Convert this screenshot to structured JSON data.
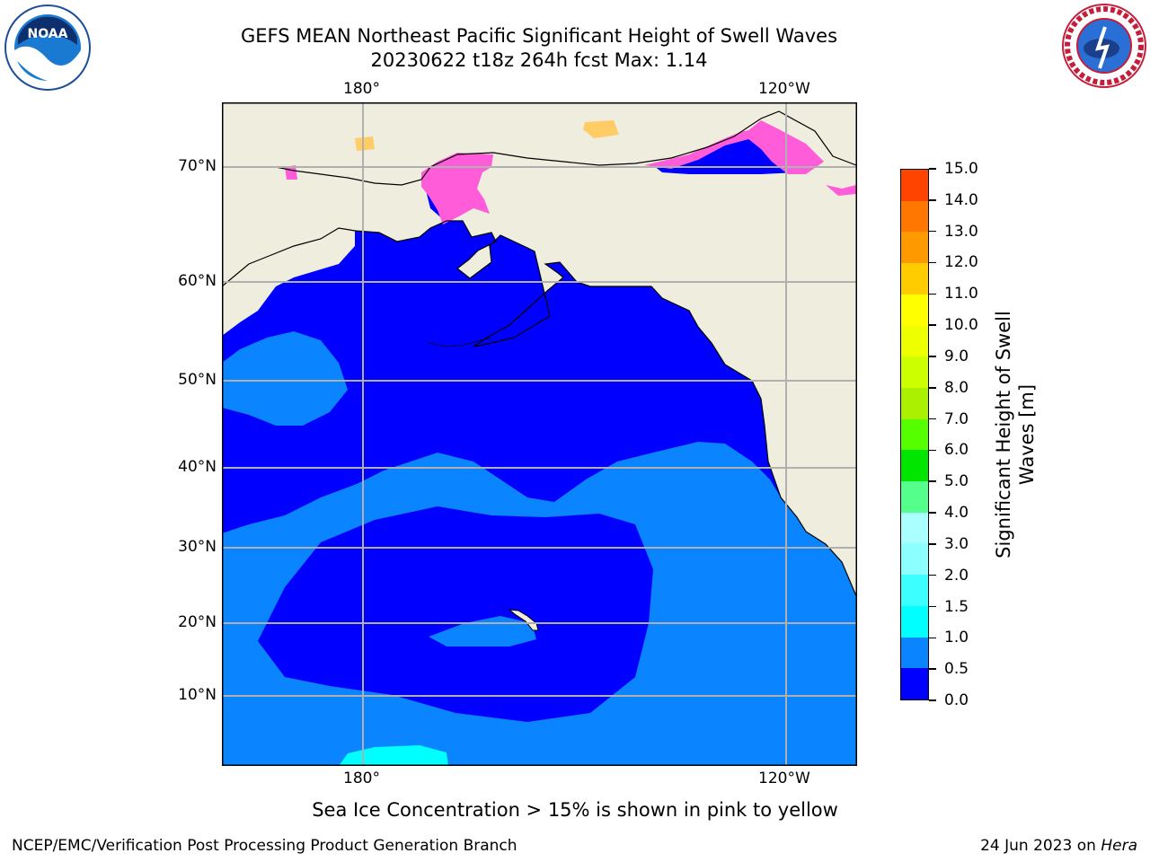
{
  "header": {
    "title_line1": "GEFS MEAN Northeast Pacific Significant Height of Swell Waves",
    "title_line2": "20230622 t18z 264h fcst   Max: 1.14"
  },
  "logos": {
    "left": "noora-logo",
    "right": "nws-logo"
  },
  "map": {
    "lon_labels": [
      "180°",
      "120°W"
    ],
    "lat_labels": [
      "70°N",
      "60°N",
      "50°N",
      "40°N",
      "30°N",
      "20°N",
      "10°N"
    ],
    "colors": {
      "land": "#efedde",
      "ocean_low": "#0000ff",
      "ocean_mid": "#0a84ff",
      "ice": "#ff5cd9",
      "grid": "#b0b0b0"
    }
  },
  "colorbar": {
    "label": "Significant Height of Swell Waves [m]",
    "ticks": [
      "0.0",
      "0.5",
      "1.0",
      "1.5",
      "2.0",
      "3.0",
      "4.0",
      "5.0",
      "6.0",
      "7.0",
      "8.0",
      "9.0",
      "10.0",
      "11.0",
      "12.0",
      "13.0",
      "14.0",
      "15.0"
    ],
    "colors": [
      "#0000ff",
      "#0a84ff",
      "#00ffff",
      "#3cffff",
      "#8cffff",
      "#aaffff",
      "#55ff8c",
      "#00e600",
      "#55ff00",
      "#aaf000",
      "#ccff00",
      "#eeff00",
      "#ffff00",
      "#ffcc00",
      "#ff9900",
      "#ff7700",
      "#ff4400",
      "#ff0000"
    ]
  },
  "footer": {
    "note": "Sea Ice Concentration > 15% is shown in pink to yellow",
    "left": "NCEP/EMC/Verification Post Processing Product Generation Branch",
    "right_date": "24 Jun 2023 on ",
    "right_host": "Hera"
  }
}
